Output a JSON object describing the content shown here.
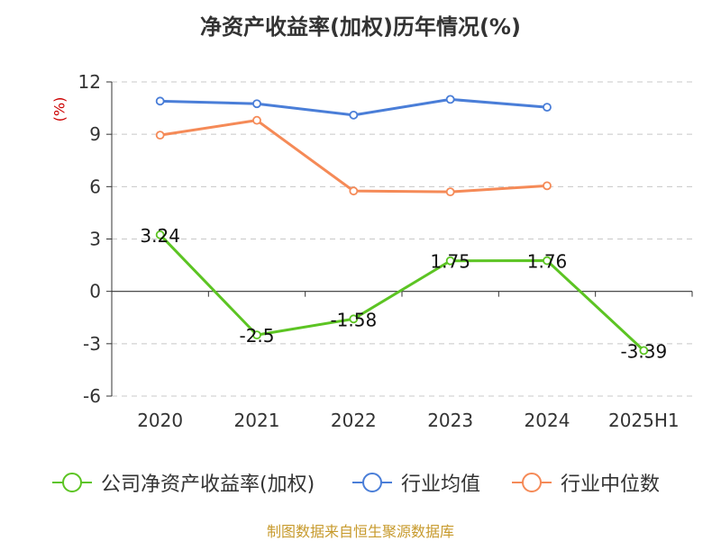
{
  "title": "净资产收益率(加权)历年情况(%)",
  "unit_label": "(%)",
  "source": "制图数据来自恒生聚源数据库",
  "colors": {
    "company": "#5cc423",
    "industry_avg": "#4a7ed8",
    "industry_median": "#f58a57",
    "grid": "#c8c8c8",
    "axis": "#333333"
  },
  "chart_data": {
    "type": "line",
    "title": "净资产收益率(加权)历年情况(%)",
    "xlabel": "",
    "ylabel": "(%)",
    "categories": [
      "2020",
      "2021",
      "2022",
      "2023",
      "2024",
      "2025H1"
    ],
    "ylim": [
      -6,
      12
    ],
    "yticks": [
      12,
      9,
      6,
      3,
      0,
      -3,
      -6
    ],
    "ytick_labels": [
      "12",
      "9",
      "6",
      "3",
      "0",
      "-3",
      "-6"
    ],
    "grid": "horizontal dashed",
    "legend_position": "bottom",
    "series": [
      {
        "name": "公司净资产收益率(加权)",
        "color": "#5cc423",
        "values": [
          3.24,
          -2.5,
          -1.58,
          1.75,
          1.76,
          -3.39
        ],
        "data_labels": [
          "3.24",
          "-2.5",
          "-1.58",
          "1.75",
          "1.76",
          "-3.39"
        ]
      },
      {
        "name": "行业均值",
        "color": "#4a7ed8",
        "values": [
          10.9,
          10.75,
          10.1,
          11.0,
          10.55,
          null
        ]
      },
      {
        "name": "行业中位数",
        "color": "#f58a57",
        "values": [
          8.95,
          9.8,
          5.75,
          5.7,
          6.05,
          null
        ]
      }
    ]
  }
}
